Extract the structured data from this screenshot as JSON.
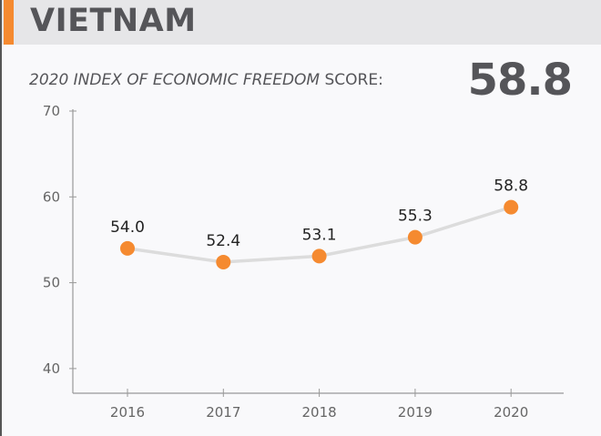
{
  "header": {
    "title": "VIETNAM",
    "accent_color": "#f58a30"
  },
  "subtitle": {
    "italic": "2020 INDEX OF ECONOMIC FREEDOM",
    "rest": " SCORE:"
  },
  "score": "58.8",
  "chart_data": {
    "type": "line",
    "categories": [
      "2016",
      "2017",
      "2018",
      "2019",
      "2020"
    ],
    "values": [
      54.0,
      52.4,
      53.1,
      55.3,
      58.8
    ],
    "data_labels": [
      "54.0",
      "52.4",
      "53.1",
      "55.3",
      "58.8"
    ],
    "ylim": [
      37,
      70
    ],
    "yticks": [
      70,
      60,
      50,
      40
    ],
    "ytick_labels": [
      "70",
      "60",
      "50",
      "40"
    ],
    "grid": false,
    "marker_color": "#f58a30",
    "line_color": "#dcdcdc"
  }
}
